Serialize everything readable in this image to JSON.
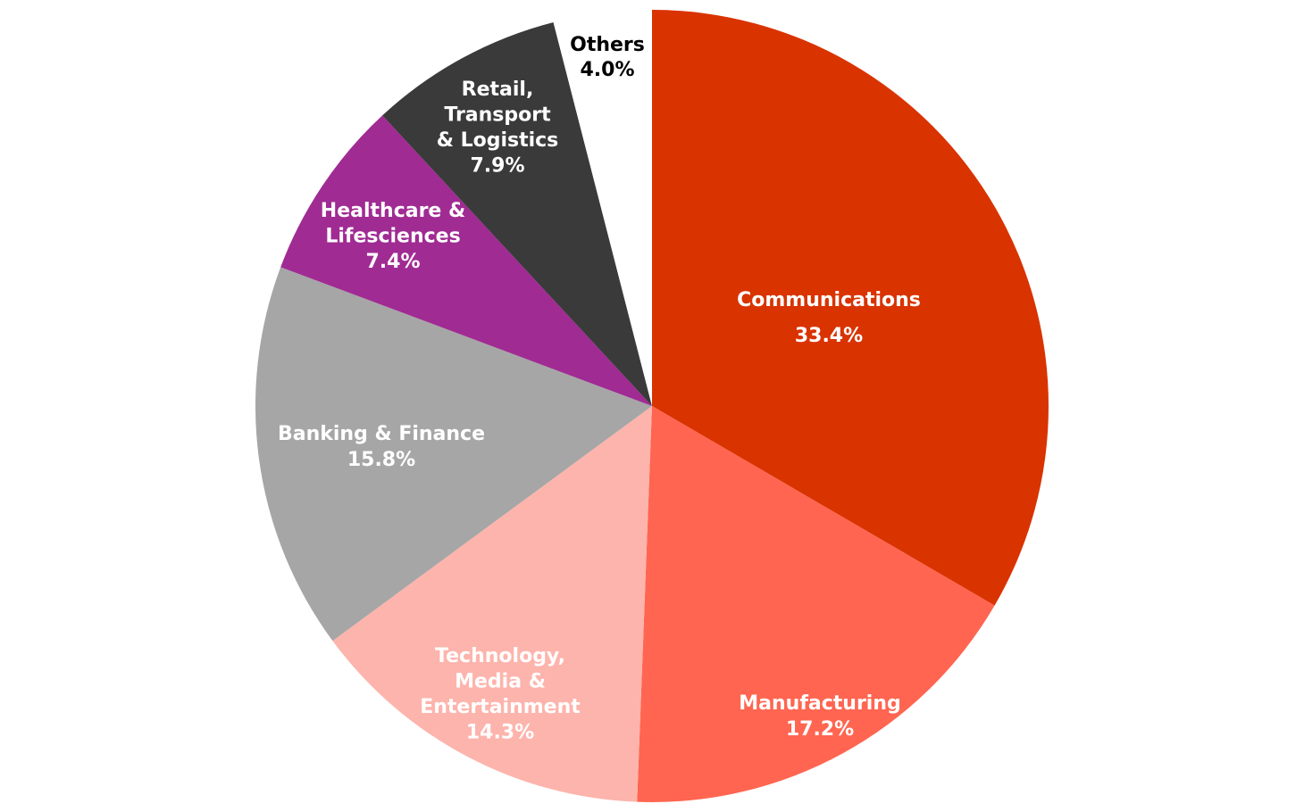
{
  "chart_data": {
    "type": "pie",
    "title": "",
    "start_angle_deg": 0,
    "direction": "clockwise",
    "slices": [
      {
        "label_lines": [
          "Communications",
          "33.4%"
        ],
        "label": "Communications",
        "value": 33.4,
        "color": "#D93300",
        "text_color": "#ffffff"
      },
      {
        "label_lines": [
          "Manufacturing",
          "17.2%"
        ],
        "label": "Manufacturing",
        "value": 17.2,
        "color": "#FF6550",
        "text_color": "#ffffff"
      },
      {
        "label_lines": [
          "Technology,",
          "Media &",
          "Entertainment",
          "14.3%"
        ],
        "label": "Technology, Media & Entertainment",
        "value": 14.3,
        "color": "#FDB4AC",
        "text_color": "#ffffff"
      },
      {
        "label_lines": [
          "Banking & Finance",
          "15.8%"
        ],
        "label": "Banking & Finance",
        "value": 15.8,
        "color": "#A6A6A6",
        "text_color": "#ffffff"
      },
      {
        "label_lines": [
          "Healthcare &",
          "Lifesciences",
          "7.4%"
        ],
        "label": "Healthcare & Lifesciences",
        "value": 7.4,
        "color": "#A02B93",
        "text_color": "#ffffff"
      },
      {
        "label_lines": [
          "Retail,",
          "Transport",
          "& Logistics",
          "7.9%"
        ],
        "label": "Retail, Transport & Logistics",
        "value": 7.9,
        "color": "#3A3A3A",
        "text_color": "#ffffff"
      },
      {
        "label_lines": [
          "Others",
          "4.0%"
        ],
        "label": "Others",
        "value": 4.0,
        "color": "#FFFFFF",
        "text_color": "#000000"
      }
    ]
  }
}
